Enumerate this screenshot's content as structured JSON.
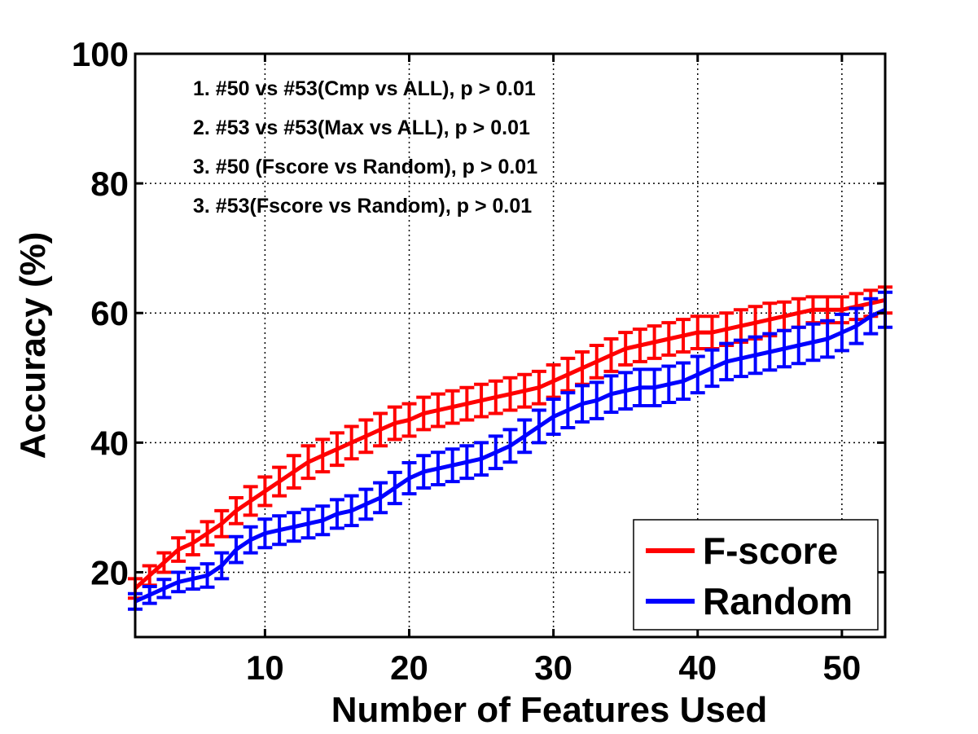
{
  "chart_data": {
    "type": "line",
    "xlabel": "Number of Features Used",
    "ylabel": "Accuracy (%)",
    "xlim": [
      1,
      53
    ],
    "ylim": [
      10,
      100
    ],
    "xticks": [
      10,
      20,
      30,
      40,
      50
    ],
    "yticks": [
      20,
      40,
      60,
      80,
      100
    ],
    "grid": true,
    "legend_position": "bottom-right",
    "annotations": [
      "1. #50 vs #53(Cmp vs ALL), p > 0.01",
      "2. #53 vs #53(Max vs ALL), p > 0.01",
      "3. #50 (Fscore vs Random), p > 0.01",
      "3. #53(Fscore vs Random), p > 0.01"
    ],
    "x": [
      1,
      2,
      3,
      4,
      5,
      6,
      7,
      8,
      9,
      10,
      11,
      12,
      13,
      14,
      15,
      16,
      17,
      18,
      19,
      20,
      21,
      22,
      23,
      24,
      25,
      26,
      27,
      28,
      29,
      30,
      31,
      32,
      33,
      34,
      35,
      36,
      37,
      38,
      39,
      40,
      41,
      42,
      43,
      44,
      45,
      46,
      47,
      48,
      49,
      50,
      51,
      52,
      53
    ],
    "series": [
      {
        "name": "F-score",
        "color": "#ff0000",
        "values": [
          17.5,
          19.5,
          21.5,
          23.5,
          24.5,
          26,
          27.5,
          29.5,
          31,
          32.5,
          34,
          35.5,
          37,
          38,
          39,
          40,
          41,
          42,
          43,
          43.5,
          44.5,
          45,
          45.5,
          46,
          46.5,
          47,
          47.5,
          48,
          48.5,
          49.5,
          50.5,
          51.5,
          52.5,
          53.5,
          54.5,
          55,
          55.5,
          56,
          56.5,
          57,
          57,
          57.5,
          58,
          58.5,
          59,
          59.5,
          60,
          60.5,
          60.5,
          60.5,
          61,
          61.5,
          62
        ],
        "error": [
          1.5,
          1.5,
          1.5,
          1.8,
          1.8,
          1.8,
          2,
          2,
          2.2,
          2.2,
          2.2,
          2.5,
          2.5,
          2.5,
          2.5,
          2.5,
          2.5,
          2.5,
          2.5,
          2.5,
          2.5,
          2.5,
          2.5,
          2.5,
          2.5,
          2.5,
          2.5,
          2.5,
          2.5,
          2.5,
          2.5,
          2.5,
          2.5,
          2.5,
          2.5,
          2.5,
          2.5,
          2.5,
          2.5,
          2.5,
          2.5,
          2.5,
          2.5,
          2.5,
          2.5,
          2.2,
          2.2,
          2,
          2,
          2,
          2,
          2,
          2
        ]
      },
      {
        "name": "Random",
        "color": "#0000ff",
        "values": [
          15.5,
          16.5,
          17.5,
          18.5,
          19,
          19.5,
          21,
          23.5,
          25,
          26,
          26.5,
          27,
          27.5,
          28,
          29,
          29.5,
          30.5,
          31.5,
          33,
          34.5,
          35.5,
          36,
          36.5,
          37,
          37.5,
          38.5,
          39.5,
          41,
          42.5,
          44,
          45,
          46,
          46.5,
          47.5,
          48,
          48.5,
          48.5,
          49,
          49.5,
          50.5,
          51.5,
          52.5,
          53,
          53.5,
          54,
          54.5,
          55,
          55.5,
          56,
          57,
          58,
          59.5,
          60.5
        ],
        "error": [
          1.2,
          1.3,
          1.4,
          1.5,
          1.6,
          1.8,
          2,
          2,
          2,
          2.2,
          2.2,
          2.2,
          2.2,
          2.2,
          2.2,
          2.3,
          2.3,
          2.3,
          2.4,
          2.4,
          2.5,
          2.5,
          2.5,
          2.5,
          2.5,
          2.5,
          2.5,
          2.5,
          2.5,
          2.7,
          2.7,
          2.8,
          2.8,
          2.8,
          2.8,
          2.8,
          2.8,
          2.8,
          2.8,
          2.8,
          2.8,
          2.8,
          2.8,
          2.8,
          2.8,
          2.8,
          2.8,
          2.8,
          2.8,
          2.8,
          2.7,
          2.7,
          2.7
        ]
      }
    ]
  }
}
